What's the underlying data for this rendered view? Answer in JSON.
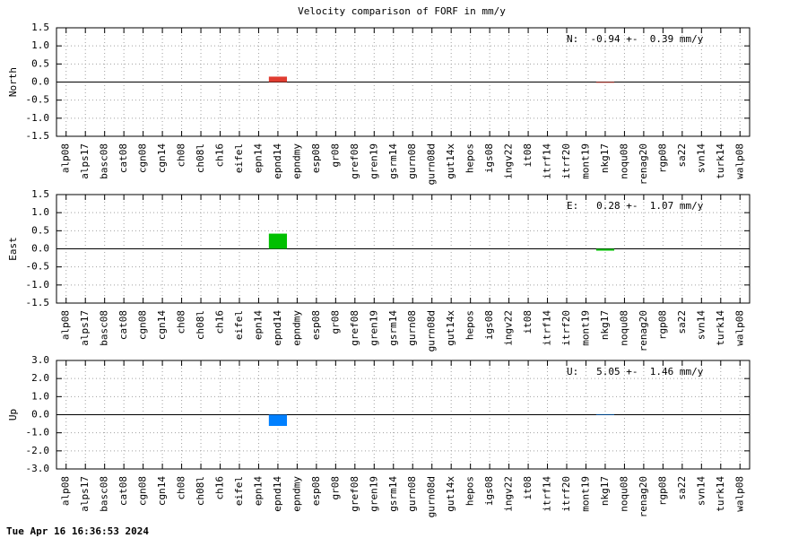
{
  "title": "Velocity comparison of FORF in mm/y",
  "timestamp": "Tue Apr 16 16:36:53 2024",
  "chart_data": [
    {
      "type": "bar",
      "ylabel": "North",
      "annotation": "N:  -0.94 +-  0.39 mm/y",
      "color": "#e03c31",
      "grid": true,
      "categories": [
        "alp08",
        "alps17",
        "basc08",
        "cat08",
        "cgn08",
        "cgn14",
        "ch08",
        "ch08l",
        "ch16",
        "eifel",
        "epn14",
        "epnd14",
        "epndmy",
        "esp08",
        "gr08",
        "gref08",
        "gren19",
        "gsrm14",
        "gurn08",
        "gurn08d",
        "gut14x",
        "hepos",
        "igs08",
        "ingv22",
        "it08",
        "itrf14",
        "itrf20",
        "mont19",
        "nkg17",
        "noqu08",
        "renag20",
        "rgp08",
        "sa22",
        "svn14",
        "turk14",
        "walp08"
      ],
      "values": [
        null,
        null,
        null,
        null,
        null,
        null,
        null,
        null,
        null,
        null,
        null,
        0.15,
        null,
        null,
        null,
        null,
        null,
        null,
        null,
        null,
        null,
        null,
        null,
        null,
        null,
        null,
        null,
        null,
        -0.02,
        null,
        null,
        null,
        null,
        null,
        null,
        null
      ],
      "ylim": [
        -1.5,
        1.5
      ],
      "yticks": [
        {
          "value": 1.5,
          "label": "1.5"
        },
        {
          "value": 1,
          "label": "1.0"
        },
        {
          "value": 0.5,
          "label": "0.5"
        },
        {
          "value": 0,
          "label": "0.0"
        },
        {
          "value": -0.5,
          "label": "-0.5"
        },
        {
          "value": -1,
          "label": "-1.0"
        },
        {
          "value": -1.5,
          "label": "-1.5"
        }
      ]
    },
    {
      "type": "bar",
      "ylabel": "East",
      "annotation": "E:   0.28 +-  1.07 mm/y",
      "color": "#00c000",
      "grid": true,
      "categories": [
        "alp08",
        "alps17",
        "basc08",
        "cat08",
        "cgn08",
        "cgn14",
        "ch08",
        "ch08l",
        "ch16",
        "eifel",
        "epn14",
        "epnd14",
        "epndmy",
        "esp08",
        "gr08",
        "gref08",
        "gren19",
        "gsrm14",
        "gurn08",
        "gurn08d",
        "gut14x",
        "hepos",
        "igs08",
        "ingv22",
        "it08",
        "itrf14",
        "itrf20",
        "mont19",
        "nkg17",
        "noqu08",
        "renag20",
        "rgp08",
        "sa22",
        "svn14",
        "turk14",
        "walp08"
      ],
      "values": [
        null,
        null,
        null,
        null,
        null,
        null,
        null,
        null,
        null,
        null,
        null,
        0.42,
        null,
        null,
        null,
        null,
        null,
        null,
        null,
        null,
        null,
        null,
        null,
        null,
        null,
        null,
        null,
        null,
        -0.05,
        null,
        null,
        null,
        null,
        null,
        null,
        null
      ],
      "ylim": [
        -1.5,
        1.5
      ],
      "yticks": [
        {
          "value": 1.5,
          "label": "1.5"
        },
        {
          "value": 1,
          "label": "1.0"
        },
        {
          "value": 0.5,
          "label": "0.5"
        },
        {
          "value": 0,
          "label": "0.0"
        },
        {
          "value": -0.5,
          "label": "-0.5"
        },
        {
          "value": -1,
          "label": "-1.0"
        },
        {
          "value": -1.5,
          "label": "-1.5"
        }
      ]
    },
    {
      "type": "bar",
      "ylabel": "Up",
      "annotation": "U:   5.05 +-  1.46 mm/y",
      "color": "#0080ff",
      "grid": true,
      "categories": [
        "alp08",
        "alps17",
        "basc08",
        "cat08",
        "cgn08",
        "cgn14",
        "ch08",
        "ch08l",
        "ch16",
        "eifel",
        "epn14",
        "epnd14",
        "epndmy",
        "esp08",
        "gr08",
        "gref08",
        "gren19",
        "gsrm14",
        "gurn08",
        "gurn08d",
        "gut14x",
        "hepos",
        "igs08",
        "ingv22",
        "it08",
        "itrf14",
        "itrf20",
        "mont19",
        "nkg17",
        "noqu08",
        "renag20",
        "rgp08",
        "sa22",
        "svn14",
        "turk14",
        "walp08"
      ],
      "values": [
        null,
        null,
        null,
        null,
        null,
        null,
        null,
        null,
        null,
        null,
        null,
        -0.62,
        null,
        null,
        null,
        null,
        null,
        null,
        null,
        null,
        null,
        null,
        null,
        null,
        null,
        null,
        null,
        null,
        0.03,
        null,
        null,
        null,
        null,
        null,
        null,
        null
      ],
      "ylim": [
        -3,
        3
      ],
      "yticks": [
        {
          "value": 3,
          "label": "3.0"
        },
        {
          "value": 2,
          "label": "2.0"
        },
        {
          "value": 1,
          "label": "1.0"
        },
        {
          "value": 0,
          "label": "0.0"
        },
        {
          "value": -1,
          "label": "-1.0"
        },
        {
          "value": -2,
          "label": "-2.0"
        },
        {
          "value": -3,
          "label": "-3.0"
        }
      ]
    }
  ]
}
